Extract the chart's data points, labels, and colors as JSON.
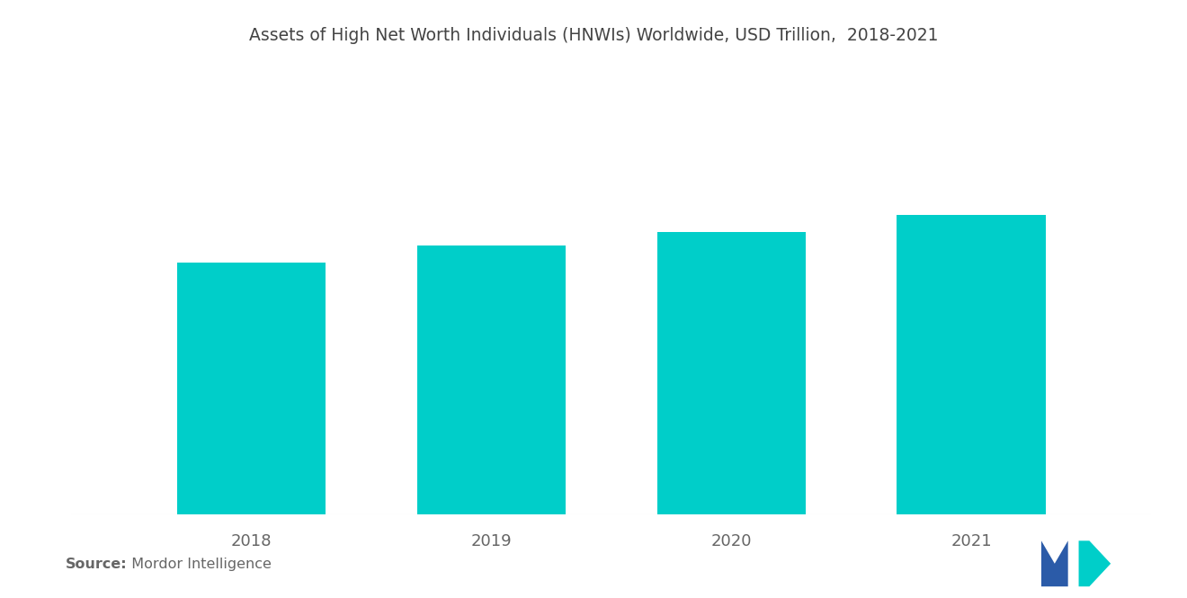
{
  "title": "Assets of High Net Worth Individuals (HNWIs) Worldwide, USD Trillion,  2018-2021",
  "categories": [
    "2018",
    "2019",
    "2020",
    "2021"
  ],
  "values": [
    74,
    79,
    83,
    88
  ],
  "bar_color": "#00CEC9",
  "background_color": "#ffffff",
  "title_fontsize": 13.5,
  "tick_fontsize": 13,
  "source_bold": "Source:",
  "source_normal": "  Mordor Intelligence",
  "ylim": [
    0,
    130
  ],
  "bar_width": 0.62
}
